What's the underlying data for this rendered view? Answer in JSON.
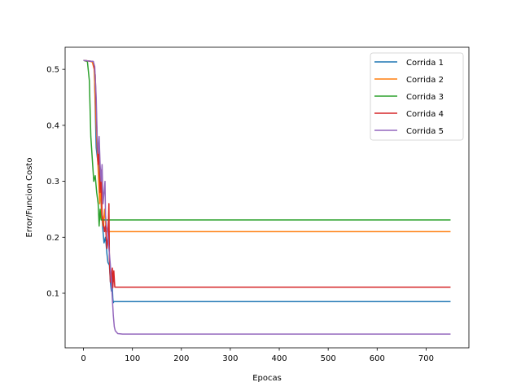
{
  "chart_data": {
    "type": "line",
    "xlabel": "Epocas",
    "ylabel": "Error/Funcion Costo",
    "xlim": [
      -37.5,
      787.5
    ],
    "ylim": [
      0.0025,
      0.5395
    ],
    "xticks": [
      0,
      100,
      200,
      300,
      400,
      500,
      600,
      700
    ],
    "xtick_labels": [
      "0",
      "100",
      "200",
      "300",
      "400",
      "500",
      "600",
      "700"
    ],
    "yticks": [
      0.1,
      0.2,
      0.3,
      0.4,
      0.5
    ],
    "ytick_labels": [
      "0.1",
      "0.2",
      "0.3",
      "0.4",
      "0.5"
    ],
    "grid": false,
    "legend_position": "top-right",
    "series": [
      {
        "name": "Corrida 1",
        "color": "#1f77b4",
        "points": [
          [
            0,
            0.516
          ],
          [
            10,
            0.515
          ],
          [
            18,
            0.514
          ],
          [
            22,
            0.505
          ],
          [
            26,
            0.36
          ],
          [
            30,
            0.33
          ],
          [
            33,
            0.29
          ],
          [
            36,
            0.26
          ],
          [
            39,
            0.22
          ],
          [
            42,
            0.19
          ],
          [
            45,
            0.2
          ],
          [
            48,
            0.17
          ],
          [
            50,
            0.155
          ],
          [
            53,
            0.15
          ],
          [
            55,
            0.12
          ],
          [
            57,
            0.104
          ],
          [
            58,
            0.13
          ],
          [
            60,
            0.09
          ],
          [
            61,
            0.083
          ],
          [
            62,
            0.085
          ],
          [
            750,
            0.085
          ]
        ]
      },
      {
        "name": "Corrida 2",
        "color": "#ff7f0e",
        "points": [
          [
            0,
            0.516
          ],
          [
            10,
            0.515
          ],
          [
            18,
            0.513
          ],
          [
            22,
            0.5
          ],
          [
            25,
            0.42
          ],
          [
            28,
            0.36
          ],
          [
            31,
            0.3
          ],
          [
            33,
            0.26
          ],
          [
            35,
            0.3
          ],
          [
            37,
            0.24
          ],
          [
            40,
            0.22
          ],
          [
            43,
            0.25
          ],
          [
            46,
            0.21
          ],
          [
            750,
            0.21
          ]
        ]
      },
      {
        "name": "Corrida 3",
        "color": "#2ca02c",
        "points": [
          [
            0,
            0.516
          ],
          [
            8,
            0.514
          ],
          [
            12,
            0.48
          ],
          [
            15,
            0.38
          ],
          [
            18,
            0.34
          ],
          [
            21,
            0.3
          ],
          [
            24,
            0.31
          ],
          [
            27,
            0.28
          ],
          [
            30,
            0.26
          ],
          [
            32,
            0.22
          ],
          [
            34,
            0.25
          ],
          [
            36,
            0.231
          ],
          [
            750,
            0.231
          ]
        ]
      },
      {
        "name": "Corrida 4",
        "color": "#d62728",
        "points": [
          [
            0,
            0.516
          ],
          [
            10,
            0.515
          ],
          [
            20,
            0.514
          ],
          [
            24,
            0.49
          ],
          [
            27,
            0.4
          ],
          [
            30,
            0.33
          ],
          [
            32,
            0.36
          ],
          [
            34,
            0.28
          ],
          [
            36,
            0.32
          ],
          [
            38,
            0.24
          ],
          [
            40,
            0.23
          ],
          [
            43,
            0.21
          ],
          [
            45,
            0.22
          ],
          [
            48,
            0.18
          ],
          [
            50,
            0.2
          ],
          [
            52,
            0.26
          ],
          [
            53,
            0.16
          ],
          [
            55,
            0.12
          ],
          [
            57,
            0.13
          ],
          [
            59,
            0.145
          ],
          [
            60,
            0.11
          ],
          [
            62,
            0.14
          ],
          [
            64,
            0.111
          ],
          [
            750,
            0.111
          ]
        ]
      },
      {
        "name": "Corrida 5",
        "color": "#9467bd",
        "points": [
          [
            0,
            0.516
          ],
          [
            10,
            0.515
          ],
          [
            20,
            0.514
          ],
          [
            23,
            0.505
          ],
          [
            26,
            0.45
          ],
          [
            28,
            0.38
          ],
          [
            30,
            0.35
          ],
          [
            32,
            0.38
          ],
          [
            34,
            0.33
          ],
          [
            36,
            0.3
          ],
          [
            38,
            0.33
          ],
          [
            40,
            0.26
          ],
          [
            42,
            0.28
          ],
          [
            44,
            0.3
          ],
          [
            45,
            0.24
          ],
          [
            47,
            0.22
          ],
          [
            49,
            0.21
          ],
          [
            51,
            0.19
          ],
          [
            53,
            0.17
          ],
          [
            55,
            0.15
          ],
          [
            57,
            0.12
          ],
          [
            59,
            0.09
          ],
          [
            61,
            0.06
          ],
          [
            63,
            0.04
          ],
          [
            65,
            0.033
          ],
          [
            70,
            0.028
          ],
          [
            80,
            0.027
          ],
          [
            750,
            0.027
          ]
        ]
      }
    ]
  }
}
